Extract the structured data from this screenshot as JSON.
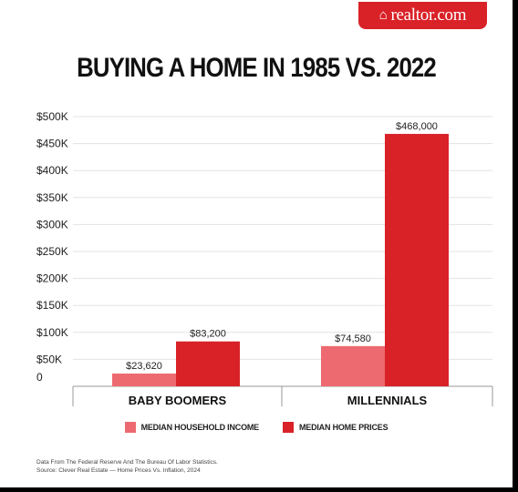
{
  "brand": {
    "logo_text": "realtor.com",
    "logo_icon": "house-icon",
    "logo_color": "#d92228"
  },
  "chart_data": {
    "type": "bar",
    "title": "BUYING A HOME IN 1985 VS. 2022",
    "categories": [
      "BABY BOOMERS",
      "MILLENNIALS"
    ],
    "series": [
      {
        "name": "MEDIAN HOUSEHOLD INCOME",
        "color": "#ec6a70",
        "values": [
          23620,
          74580
        ],
        "labels": [
          "$23,620",
          "$74,580"
        ]
      },
      {
        "name": "MEDIAN HOME PRICES",
        "color": "#d92228",
        "values": [
          83200,
          468000
        ],
        "labels": [
          "$83,200",
          "$468,000"
        ]
      }
    ],
    "y_ticks": [
      {
        "value": 500000,
        "label": "$500K"
      },
      {
        "value": 450000,
        "label": "$450K"
      },
      {
        "value": 400000,
        "label": "$400K"
      },
      {
        "value": 350000,
        "label": "$350K"
      },
      {
        "value": 300000,
        "label": "$300K"
      },
      {
        "value": 250000,
        "label": "$250K"
      },
      {
        "value": 200000,
        "label": "$200K"
      },
      {
        "value": 150000,
        "label": "$150K"
      },
      {
        "value": 100000,
        "label": "$100K"
      },
      {
        "value": 50000,
        "label": "$50K"
      },
      {
        "value": 0,
        "label": "0"
      }
    ],
    "ylim": [
      0,
      500000
    ],
    "grid": true,
    "legend_position": "bottom"
  },
  "source": {
    "line1": "Data From The Federal Reserve And The Bureau Of Labor Statistics.",
    "line2": "Source: Clever Real Estate — Home Prices Vs. Inflation, 2024"
  }
}
